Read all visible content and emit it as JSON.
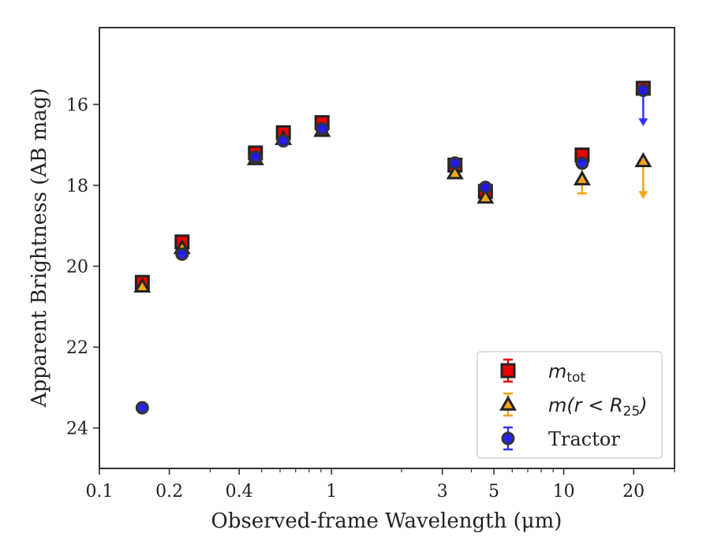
{
  "chart_data": {
    "type": "scatter",
    "xlabel": "Observed-frame Wavelength (μm)",
    "ylabel": "Apparent Brightness (AB mag)",
    "xscale": "log",
    "xlim": [
      0.1,
      30
    ],
    "ylim": [
      25,
      14.1
    ],
    "y_inverted": true,
    "xticks": [
      {
        "value": 0.1,
        "label": "0.1"
      },
      {
        "value": 0.2,
        "label": "0.2"
      },
      {
        "value": 0.4,
        "label": "0.4"
      },
      {
        "value": 1,
        "label": "1"
      },
      {
        "value": 3,
        "label": "3"
      },
      {
        "value": 5,
        "label": "5"
      },
      {
        "value": 10,
        "label": "10"
      },
      {
        "value": 20,
        "label": "20"
      }
    ],
    "yticks": [
      {
        "value": 16,
        "label": "16"
      },
      {
        "value": 18,
        "label": "18"
      },
      {
        "value": 20,
        "label": "20"
      },
      {
        "value": 22,
        "label": "22"
      },
      {
        "value": 24,
        "label": "24"
      }
    ],
    "grid": false,
    "legend_position": "lower-right",
    "series": [
      {
        "name": "m_tot",
        "legend_label": {
          "base": "m",
          "sub": "tot"
        },
        "marker": "square",
        "color": "#ee0000",
        "edge": "#222222",
        "errcolor": "#ee0000",
        "points": [
          {
            "x": 0.153,
            "y": 20.4
          },
          {
            "x": 0.227,
            "y": 19.4
          },
          {
            "x": 0.47,
            "y": 17.2
          },
          {
            "x": 0.62,
            "y": 16.7
          },
          {
            "x": 0.91,
            "y": 16.45
          },
          {
            "x": 3.4,
            "y": 17.5
          },
          {
            "x": 4.6,
            "y": 18.15
          },
          {
            "x": 12.0,
            "y": 17.25
          },
          {
            "x": 22.0,
            "y": 15.6
          }
        ]
      },
      {
        "name": "m(r<R25)",
        "legend_label": {
          "base": "m(r < R",
          "sub": "25",
          "close": ")"
        },
        "marker": "triangle",
        "color": "#f5a31a",
        "edge": "#222222",
        "errcolor": "#f5a31a",
        "points": [
          {
            "x": 0.153,
            "y": 20.5
          },
          {
            "x": 0.227,
            "y": 19.55
          },
          {
            "x": 0.47,
            "y": 17.35
          },
          {
            "x": 0.62,
            "y": 16.85
          },
          {
            "x": 0.91,
            "y": 16.65
          },
          {
            "x": 3.4,
            "y": 17.7
          },
          {
            "x": 4.6,
            "y": 18.3
          },
          {
            "x": 12.0,
            "y": 17.85,
            "err": 0.35
          },
          {
            "x": 22.0,
            "y": 17.4,
            "upper_limit_to": 18.3
          }
        ]
      },
      {
        "name": "Tractor",
        "legend_label": {
          "base": "Tractor"
        },
        "marker": "circle",
        "color": "#1a1aee",
        "edge": "#333333",
        "errcolor": "#3333ff",
        "points": [
          {
            "x": 0.153,
            "y": 23.5
          },
          {
            "x": 0.227,
            "y": 19.7
          },
          {
            "x": 0.47,
            "y": 17.3
          },
          {
            "x": 0.62,
            "y": 16.9
          },
          {
            "x": 0.91,
            "y": 16.6
          },
          {
            "x": 3.4,
            "y": 17.45
          },
          {
            "x": 4.6,
            "y": 18.05
          },
          {
            "x": 12.0,
            "y": 17.45
          },
          {
            "x": 22.0,
            "y": 15.65,
            "upper_limit_to": 16.5
          }
        ]
      }
    ]
  }
}
